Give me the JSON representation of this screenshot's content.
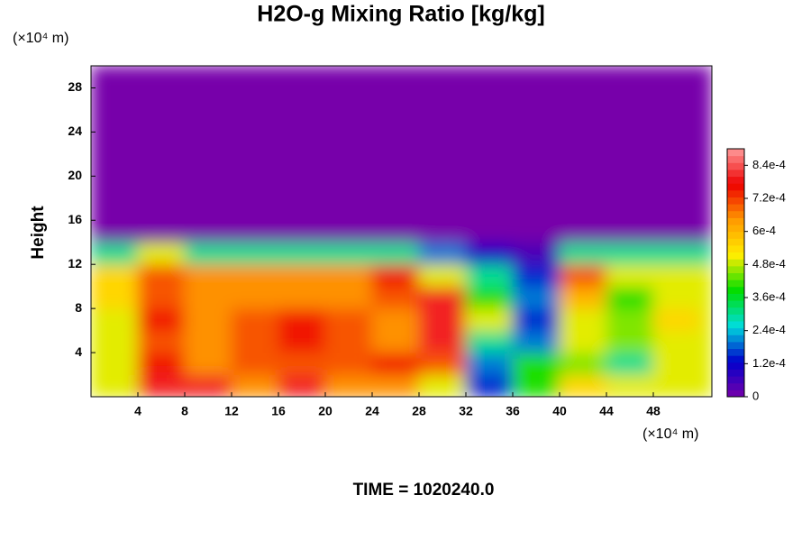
{
  "chart_data": {
    "type": "heatmap",
    "title": "H2O-g Mixing Ratio [kg/kg]",
    "ylabel": "Height",
    "x_unit": "(×10⁴ m)",
    "y_unit": "(×10⁴ m)",
    "footer": "TIME = 1020240.0",
    "xlim": [
      0,
      53
    ],
    "ylim": [
      0,
      30
    ],
    "xticks": [
      4,
      8,
      12,
      16,
      20,
      24,
      28,
      32,
      36,
      40,
      44,
      48
    ],
    "yticks": [
      4,
      8,
      12,
      16,
      20,
      24,
      28
    ],
    "xbins": [
      0,
      4,
      8,
      12,
      16,
      20,
      24,
      28,
      32,
      36,
      40,
      44,
      48,
      52,
      53
    ],
    "ybins": [
      0,
      2,
      4,
      6,
      8,
      10,
      12,
      14,
      30
    ],
    "z": [
      [
        0.0005,
        0.0008,
        0.0008,
        0.00065,
        0.0008,
        0.00065,
        0.00065,
        0.0005,
        0.00015,
        0.0004,
        0.00055,
        0.0005,
        0.0005,
        0.0005
      ],
      [
        0.0005,
        0.00075,
        0.00065,
        0.0007,
        0.0007,
        0.0007,
        0.00075,
        0.0007,
        0.0002,
        0.0004,
        0.00045,
        0.0003,
        0.0005,
        0.0005
      ],
      [
        0.0005,
        0.0007,
        0.00065,
        0.0007,
        0.00075,
        0.0007,
        0.00065,
        0.0008,
        0.0003,
        0.0002,
        0.0005,
        0.00045,
        0.0005,
        0.0005
      ],
      [
        0.0005,
        0.00075,
        0.00065,
        0.0007,
        0.00075,
        0.0007,
        0.00065,
        0.0008,
        0.0005,
        0.00015,
        0.0005,
        0.00045,
        0.00055,
        0.0005
      ],
      [
        0.00055,
        0.0007,
        0.00065,
        0.00065,
        0.00065,
        0.00065,
        0.0007,
        0.0008,
        0.0004,
        0.0002,
        0.0006,
        0.0004,
        0.0005,
        0.0005
      ],
      [
        0.00055,
        0.0007,
        0.00065,
        0.00065,
        0.00065,
        0.00065,
        0.00075,
        0.0005,
        0.0003,
        0.00015,
        0.0007,
        0.0005,
        0.0005,
        0.0005
      ],
      [
        0.0003,
        0.0005,
        0.0003,
        0.0003,
        0.0003,
        0.0003,
        0.0003,
        0.0002,
        0.0001,
        5e-05,
        0.0003,
        0.0003,
        0.0003,
        0.0003
      ],
      [
        0,
        0,
        0,
        0,
        0,
        0,
        0,
        0,
        0,
        0,
        0,
        0,
        0,
        0
      ]
    ],
    "clim": [
      0,
      0.0009
    ],
    "colormap": [
      "#7700aa",
      "#0000cc",
      "#00dddd",
      "#00dd00",
      "#ffee00",
      "#ff9900",
      "#ee0000",
      "#ff9999"
    ],
    "cticks": [
      {
        "value": 0,
        "label": "0"
      },
      {
        "value": 0.00012,
        "label": "1.2e-4"
      },
      {
        "value": 0.00024,
        "label": "2.4e-4"
      },
      {
        "value": 0.00036,
        "label": "3.6e-4"
      },
      {
        "value": 0.00048,
        "label": "4.8e-4"
      },
      {
        "value": 0.0006,
        "label": "6e-4"
      },
      {
        "value": 0.00072,
        "label": "7.2e-4"
      },
      {
        "value": 0.00084,
        "label": "8.4e-4"
      }
    ]
  }
}
